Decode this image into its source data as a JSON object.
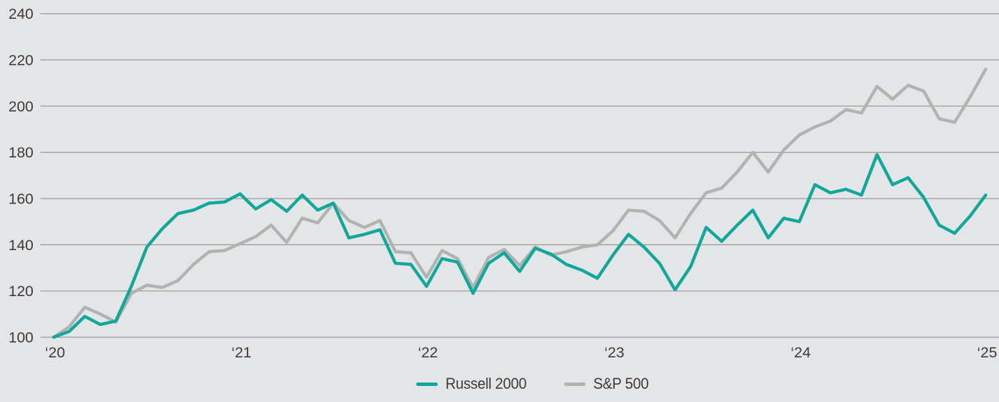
{
  "chart_data": {
    "type": "line",
    "title": "",
    "xlabel": "",
    "ylabel": "",
    "x_unit": "months from start of 2020 (indexed to 100)",
    "x_tick_labels": [
      "‘20",
      "‘21",
      "‘22",
      "‘23",
      "‘24",
      "‘25"
    ],
    "x_tick_month_index": [
      0,
      12,
      24,
      36,
      48,
      60
    ],
    "y_ticks": [
      100,
      120,
      140,
      160,
      180,
      200,
      220,
      240
    ],
    "ylim": [
      100,
      240
    ],
    "grid": "horizontal",
    "legend_position": "bottom-center",
    "series": [
      {
        "name": "S&P 500",
        "color": "#b1b3b3",
        "values": [
          100,
          104.5,
          113,
          110,
          106.5,
          119,
          122.5,
          121.5,
          124.5,
          131.5,
          137,
          137.5,
          140.5,
          143.5,
          148.5,
          141,
          151.5,
          149.5,
          158,
          150.5,
          147.5,
          150.5,
          137,
          136.5,
          126,
          137.5,
          134,
          121.5,
          134.5,
          138,
          131,
          139,
          135.5,
          137,
          139,
          140,
          146,
          155,
          154.5,
          150.5,
          143,
          153.5,
          162.5,
          164.5,
          171.5,
          180,
          171.5,
          181,
          187.5,
          191,
          193.5,
          198.5,
          197,
          208.5,
          203,
          209,
          206.5,
          194.5,
          193,
          204,
          216
        ]
      },
      {
        "name": "Russell 2000",
        "color": "#0fa89a",
        "values": [
          100,
          102.5,
          109,
          105.5,
          107,
          122,
          139,
          147,
          153.5,
          155,
          158,
          158.5,
          162,
          155.5,
          159.5,
          154.5,
          161.5,
          155,
          158,
          143,
          144.5,
          146.5,
          132,
          131.5,
          122,
          134,
          132.5,
          119,
          132,
          136.5,
          128.5,
          138.5,
          136,
          131.5,
          129,
          125.5,
          135.5,
          144.5,
          139,
          132,
          120.5,
          130.5,
          147.5,
          141.5,
          148.5,
          155,
          143,
          151.5,
          150,
          166,
          162.5,
          164,
          161.5,
          179,
          166,
          169,
          160.5,
          148.5,
          145,
          152.5,
          161.5
        ]
      }
    ]
  },
  "legend": {
    "items": [
      {
        "id": "russell-2000",
        "label": "Russell 2000",
        "color": "#0fa89a"
      },
      {
        "id": "sp-500",
        "label": "S&P 500",
        "color": "#b1b3b3"
      }
    ]
  },
  "style": {
    "background": "#e4e5e6",
    "gridline_color": "#9b9b9c",
    "axis_label_color": "#3b3b3b",
    "line_width": 4.5
  }
}
